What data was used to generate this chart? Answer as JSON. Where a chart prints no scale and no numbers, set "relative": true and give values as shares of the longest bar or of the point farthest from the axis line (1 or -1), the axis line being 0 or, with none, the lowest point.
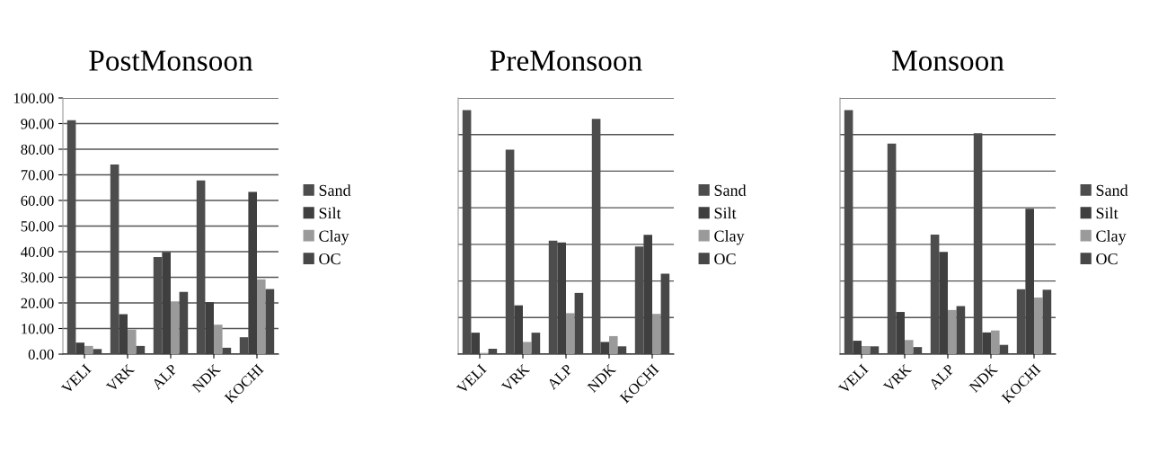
{
  "chart_data": [
    {
      "type": "bar",
      "title": "PostMonsoon",
      "categories": [
        "VELI",
        "VRK",
        "ALP",
        "NDK",
        "KOCHI"
      ],
      "ylim": [
        0,
        100
      ],
      "yticks": [
        {
          "value": 0,
          "label": "0.00"
        },
        {
          "value": 10,
          "label": "10.00"
        },
        {
          "value": 20,
          "label": "20.00"
        },
        {
          "value": 30,
          "label": "30.00"
        },
        {
          "value": 40,
          "label": "40.00"
        },
        {
          "value": 50,
          "label": "50.00"
        },
        {
          "value": 60,
          "label": "60.00"
        },
        {
          "value": 70,
          "label": "70.00"
        },
        {
          "value": 80,
          "label": "80.00"
        },
        {
          "value": 90,
          "label": "90.00"
        },
        {
          "value": 100,
          "label": "100.00"
        }
      ],
      "grid": "y",
      "legend": "right",
      "series": [
        {
          "name": "Sand",
          "color": "#4d4d4d",
          "values": [
            91.3,
            74,
            37.9,
            67.8,
            6.6
          ]
        },
        {
          "name": "Silt",
          "color": "#3f3f3f",
          "values": [
            4.5,
            15.6,
            39.8,
            20.3,
            63.3
          ]
        },
        {
          "name": "Clay",
          "color": "#9a9a9a",
          "values": [
            3.2,
            9.6,
            20.6,
            11.5,
            29.2
          ]
        },
        {
          "name": "OC",
          "color": "#474747",
          "values": [
            2,
            3.2,
            24.3,
            2.5,
            25.4
          ]
        }
      ]
    },
    {
      "type": "bar",
      "title": "PreMonsoon",
      "categories": [
        "VELI",
        "VRK",
        "ALP",
        "NDK",
        "KOCHI"
      ],
      "relative": true,
      "grid": "y",
      "legend": "right",
      "series": [
        {
          "name": "Sand",
          "color": "#4d4d4d",
          "values": [
            1,
            0.838,
            0.465,
            0.964,
            0.441
          ]
        },
        {
          "name": "Silt",
          "color": "#3f3f3f",
          "values": [
            0.088,
            0.2,
            0.458,
            0.05,
            0.489
          ]
        },
        {
          "name": "Clay",
          "color": "#9a9a9a",
          "values": [
            0.005,
            0.05,
            0.168,
            0.074,
            0.165
          ]
        },
        {
          "name": "OC",
          "color": "#474747",
          "values": [
            0.022,
            0.088,
            0.251,
            0.032,
            0.33
          ]
        }
      ]
    },
    {
      "type": "bar",
      "title": "Monsoon",
      "categories": [
        "VELI",
        "VRK",
        "ALP",
        "NDK",
        "KOCHI"
      ],
      "relative": true,
      "grid": "y",
      "legend": "right",
      "series": [
        {
          "name": "Sand",
          "color": "#4d4d4d",
          "values": [
            1,
            0.863,
            0.49,
            0.905,
            0.266
          ]
        },
        {
          "name": "Silt",
          "color": "#3f3f3f",
          "values": [
            0.055,
            0.173,
            0.419,
            0.089,
            0.596
          ]
        },
        {
          "name": "Clay",
          "color": "#9a9a9a",
          "values": [
            0.033,
            0.058,
            0.181,
            0.097,
            0.232
          ]
        },
        {
          "name": "OC",
          "color": "#474747",
          "values": [
            0.032,
            0.029,
            0.197,
            0.038,
            0.264
          ]
        }
      ]
    }
  ]
}
